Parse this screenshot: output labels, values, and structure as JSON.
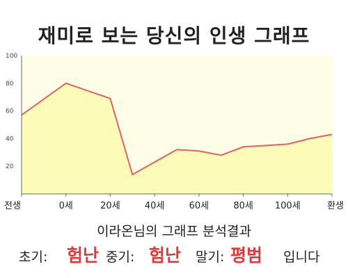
{
  "title": "재미로 보는 당신의 인생 그래프",
  "caption": "이라온님의 그래프 분석결과",
  "result": {
    "early_label": "초기:",
    "early_value": "험난",
    "middle_label": "중기:",
    "middle_value": "험난",
    "late_label": "말기:",
    "late_value": "평범",
    "suffix": "입니다"
  },
  "colors": {
    "plot_background": "#fefde6",
    "area_fill": "#fdfbb8",
    "line": "#e0625e",
    "value_text": "#e03a3a"
  },
  "chart_data": {
    "type": "area",
    "categories": [
      "전생",
      "0세",
      "20세",
      "40세",
      "60세",
      "80세",
      "100세",
      "환생"
    ],
    "x": [
      -1,
      0,
      1,
      2,
      3,
      4,
      5,
      6
    ],
    "series": [
      {
        "x": [
          -1,
          0,
          1,
          1.5,
          2,
          2.5,
          3,
          3.5,
          4,
          4.5,
          5,
          5.5,
          6
        ],
        "values": [
          57,
          80,
          69,
          14,
          23,
          32,
          31,
          28,
          34,
          35,
          36,
          40,
          43
        ]
      }
    ],
    "ylim": [
      0,
      100
    ],
    "yticks": [
      20,
      40,
      60,
      80,
      100
    ],
    "grid": false,
    "legend": "none"
  }
}
